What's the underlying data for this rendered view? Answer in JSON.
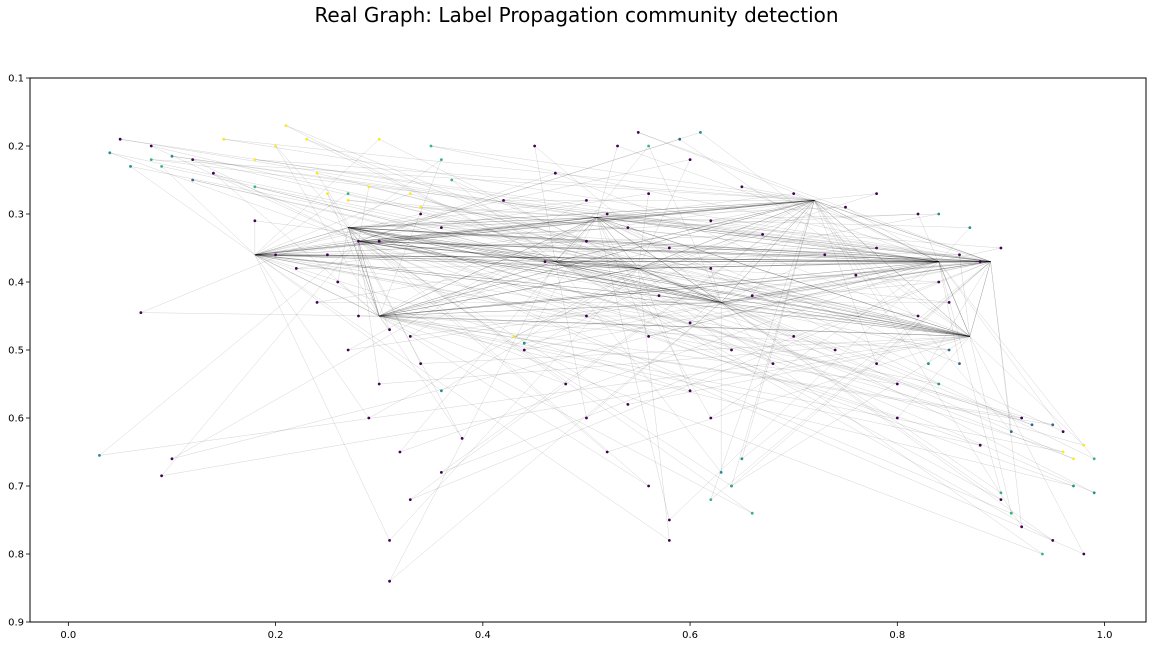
{
  "chart_data": {
    "type": "scatter",
    "title": "Real Graph: Label Propagation community detection",
    "xlabel": "",
    "ylabel": "",
    "xlim": [
      -0.037,
      1.04
    ],
    "ylim": [
      0.9,
      0.1
    ],
    "y_inverted": true,
    "x_ticks": [
      "0.0",
      "0.2",
      "0.4",
      "0.6",
      "0.8",
      "1.0"
    ],
    "y_ticks": [
      "0.1",
      "0.2",
      "0.3",
      "0.4",
      "0.5",
      "0.6",
      "0.7",
      "0.8",
      "0.9"
    ],
    "grid": false,
    "legend": "none",
    "edge_color": "#000000",
    "community_colors": {
      "main": "#440154",
      "blue": "#31688e",
      "teal": "#21918c",
      "green": "#35b779",
      "yellow": "#fde725"
    },
    "hubs": [
      {
        "x": 0.51,
        "y": 0.305
      },
      {
        "x": 0.28,
        "y": 0.34
      },
      {
        "x": 0.18,
        "y": 0.36
      },
      {
        "x": 0.84,
        "y": 0.37
      },
      {
        "x": 0.89,
        "y": 0.37
      },
      {
        "x": 0.55,
        "y": 0.38
      },
      {
        "x": 0.47,
        "y": 0.37
      },
      {
        "x": 0.72,
        "y": 0.28
      },
      {
        "x": 0.3,
        "y": 0.45
      },
      {
        "x": 0.63,
        "y": 0.43
      },
      {
        "x": 0.87,
        "y": 0.48
      },
      {
        "x": 0.27,
        "y": 0.32
      }
    ],
    "series": [
      {
        "color": "main",
        "points": [
          [
            0.05,
            0.19
          ],
          [
            0.08,
            0.2
          ],
          [
            0.18,
            0.31
          ],
          [
            0.2,
            0.36
          ],
          [
            0.22,
            0.38
          ],
          [
            0.25,
            0.36
          ],
          [
            0.28,
            0.34
          ],
          [
            0.3,
            0.34
          ],
          [
            0.26,
            0.4
          ],
          [
            0.24,
            0.43
          ],
          [
            0.28,
            0.45
          ],
          [
            0.31,
            0.47
          ],
          [
            0.33,
            0.48
          ],
          [
            0.3,
            0.55
          ],
          [
            0.29,
            0.6
          ],
          [
            0.32,
            0.65
          ],
          [
            0.33,
            0.72
          ],
          [
            0.31,
            0.78
          ],
          [
            0.31,
            0.84
          ],
          [
            0.36,
            0.68
          ],
          [
            0.38,
            0.63
          ],
          [
            0.45,
            0.2
          ],
          [
            0.47,
            0.24
          ],
          [
            0.5,
            0.28
          ],
          [
            0.52,
            0.3
          ],
          [
            0.54,
            0.32
          ],
          [
            0.56,
            0.27
          ],
          [
            0.53,
            0.2
          ],
          [
            0.55,
            0.18
          ],
          [
            0.5,
            0.34
          ],
          [
            0.46,
            0.37
          ],
          [
            0.44,
            0.5
          ],
          [
            0.48,
            0.55
          ],
          [
            0.5,
            0.6
          ],
          [
            0.52,
            0.65
          ],
          [
            0.56,
            0.7
          ],
          [
            0.58,
            0.75
          ],
          [
            0.54,
            0.58
          ],
          [
            0.6,
            0.56
          ],
          [
            0.62,
            0.6
          ],
          [
            0.66,
            0.42
          ],
          [
            0.7,
            0.48
          ],
          [
            0.74,
            0.5
          ],
          [
            0.78,
            0.52
          ],
          [
            0.8,
            0.55
          ],
          [
            0.84,
            0.4
          ],
          [
            0.86,
            0.36
          ],
          [
            0.88,
            0.37
          ],
          [
            0.9,
            0.35
          ],
          [
            0.82,
            0.3
          ],
          [
            0.78,
            0.27
          ],
          [
            0.7,
            0.27
          ],
          [
            0.65,
            0.26
          ],
          [
            0.6,
            0.22
          ],
          [
            0.9,
            0.72
          ],
          [
            0.92,
            0.76
          ],
          [
            0.88,
            0.64
          ],
          [
            0.95,
            0.78
          ],
          [
            0.98,
            0.8
          ],
          [
            0.07,
            0.445
          ],
          [
            0.1,
            0.66
          ],
          [
            0.09,
            0.685
          ],
          [
            0.34,
            0.3
          ],
          [
            0.36,
            0.32
          ],
          [
            0.62,
            0.31
          ],
          [
            0.67,
            0.33
          ],
          [
            0.73,
            0.36
          ],
          [
            0.76,
            0.39
          ],
          [
            0.82,
            0.45
          ],
          [
            0.85,
            0.43
          ],
          [
            0.12,
            0.22
          ],
          [
            0.14,
            0.24
          ],
          [
            0.27,
            0.5
          ],
          [
            0.34,
            0.52
          ],
          [
            0.5,
            0.45
          ],
          [
            0.56,
            0.48
          ],
          [
            0.6,
            0.46
          ],
          [
            0.64,
            0.5
          ],
          [
            0.68,
            0.52
          ],
          [
            0.42,
            0.28
          ],
          [
            0.58,
            0.35
          ],
          [
            0.62,
            0.38
          ],
          [
            0.57,
            0.42
          ],
          [
            0.92,
            0.6
          ],
          [
            0.96,
            0.62
          ],
          [
            0.8,
            0.6
          ],
          [
            0.78,
            0.35
          ],
          [
            0.75,
            0.29
          ],
          [
            0.64,
            0.7
          ],
          [
            0.58,
            0.78
          ]
        ]
      },
      {
        "color": "blue",
        "points": [
          [
            0.93,
            0.61
          ],
          [
            0.91,
            0.62
          ],
          [
            0.95,
            0.61
          ],
          [
            0.12,
            0.25
          ],
          [
            0.59,
            0.19
          ],
          [
            0.85,
            0.5
          ],
          [
            0.86,
            0.52
          ]
        ]
      },
      {
        "color": "teal",
        "points": [
          [
            0.04,
            0.21
          ],
          [
            0.06,
            0.23
          ],
          [
            0.1,
            0.215
          ],
          [
            0.83,
            0.52
          ],
          [
            0.84,
            0.55
          ],
          [
            0.63,
            0.68
          ],
          [
            0.65,
            0.66
          ],
          [
            0.97,
            0.7
          ],
          [
            0.99,
            0.71
          ],
          [
            0.61,
            0.18
          ],
          [
            0.84,
            0.3
          ],
          [
            0.87,
            0.32
          ],
          [
            0.03,
            0.655
          ],
          [
            0.36,
            0.56
          ],
          [
            0.44,
            0.49
          ]
        ]
      },
      {
        "color": "green",
        "points": [
          [
            0.08,
            0.22
          ],
          [
            0.09,
            0.23
          ],
          [
            0.18,
            0.26
          ],
          [
            0.35,
            0.2
          ],
          [
            0.36,
            0.22
          ],
          [
            0.56,
            0.2
          ],
          [
            0.64,
            0.7
          ],
          [
            0.66,
            0.74
          ],
          [
            0.9,
            0.71
          ],
          [
            0.91,
            0.74
          ],
          [
            0.94,
            0.8
          ],
          [
            0.99,
            0.66
          ],
          [
            0.62,
            0.72
          ],
          [
            0.27,
            0.27
          ],
          [
            0.37,
            0.25
          ]
        ]
      },
      {
        "color": "yellow",
        "points": [
          [
            0.15,
            0.19
          ],
          [
            0.2,
            0.2
          ],
          [
            0.23,
            0.19
          ],
          [
            0.24,
            0.24
          ],
          [
            0.25,
            0.27
          ],
          [
            0.27,
            0.28
          ],
          [
            0.29,
            0.26
          ],
          [
            0.33,
            0.27
          ],
          [
            0.34,
            0.29
          ],
          [
            0.18,
            0.22
          ],
          [
            0.3,
            0.19
          ],
          [
            0.21,
            0.17
          ],
          [
            0.43,
            0.48
          ],
          [
            0.96,
            0.65
          ],
          [
            0.97,
            0.66
          ],
          [
            0.98,
            0.64
          ]
        ]
      }
    ]
  }
}
